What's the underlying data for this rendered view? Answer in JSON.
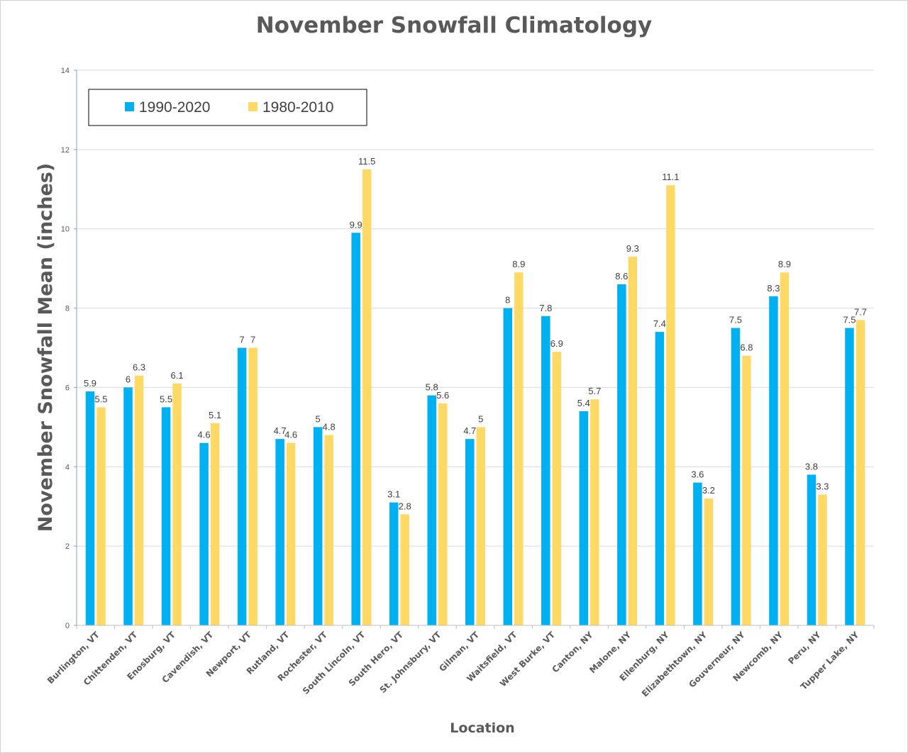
{
  "chart_data": {
    "type": "bar",
    "title": "November Snowfall Climatology",
    "xlabel": "Location",
    "ylabel": "November Snowfall Mean (inches)",
    "ylim": [
      0,
      14
    ],
    "yticks": [
      0,
      2,
      4,
      6,
      8,
      10,
      12,
      14
    ],
    "grid": true,
    "legend_position": "top-left",
    "categories": [
      "Burlington, VT",
      "Chittenden, VT",
      "Enosburg, VT",
      "Cavendish, VT",
      "Newport, VT",
      "Rutland, VT",
      "Rochester, VT",
      "South Lincoln, VT",
      "South Hero, VT",
      "St. Johnsbury, VT",
      "Gilman, VT",
      "Waitsfield, VT",
      "West Burke, VT",
      "Canton, NY",
      "Malone, NY",
      "Ellenburg, NY",
      "Elizabethtown, NY",
      "Gouverneur, NY",
      "Newcomb, NY",
      "Peru, NY",
      "Tupper Lake, NY"
    ],
    "series": [
      {
        "name": "1990-2020",
        "color": "#00b0f0",
        "values": [
          5.9,
          6,
          5.5,
          4.6,
          7,
          4.7,
          5,
          9.9,
          3.1,
          5.8,
          4.7,
          8,
          7.8,
          5.4,
          8.6,
          7.4,
          3.6,
          7.5,
          8.3,
          3.8,
          7.5
        ]
      },
      {
        "name": "1980-2010",
        "color": "#ffd966",
        "values": [
          5.5,
          6.3,
          6.1,
          5.1,
          7,
          4.6,
          4.8,
          11.5,
          2.8,
          5.6,
          5,
          8.9,
          6.9,
          5.7,
          9.3,
          11.1,
          3.2,
          6.8,
          8.9,
          3.3,
          7.7
        ]
      }
    ]
  }
}
